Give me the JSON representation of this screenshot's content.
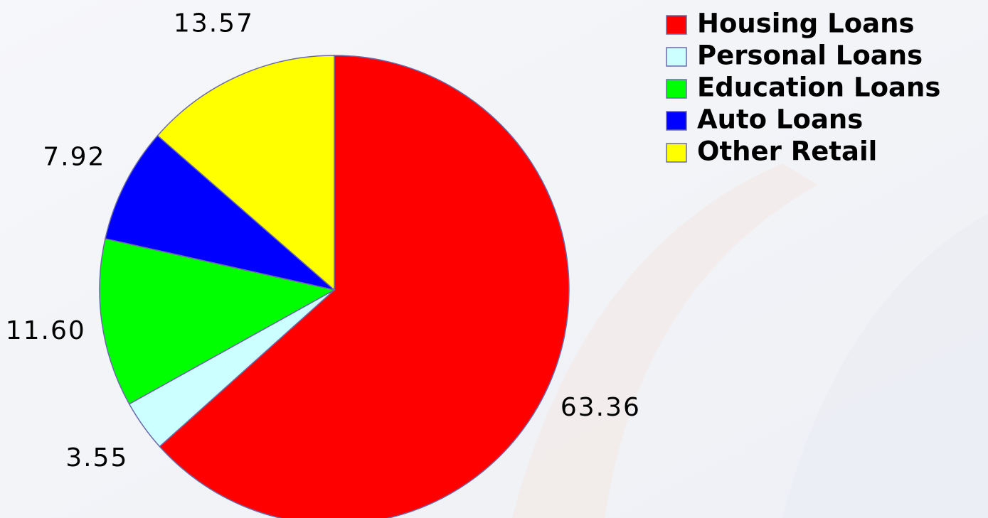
{
  "chart_data": {
    "type": "pie",
    "categories": [
      "Housing Loans",
      "Personal Loans",
      "Education Loans",
      "Auto Loans",
      "Other Retail"
    ],
    "values": [
      63.36,
      3.55,
      11.6,
      7.92,
      13.57
    ],
    "value_labels": [
      "63.36",
      "3.55",
      "11.60",
      "7.92",
      "13.57"
    ],
    "colors": [
      "#ff0000",
      "#ccffff",
      "#00ff00",
      "#0000ff",
      "#ffff00"
    ],
    "legend": "right"
  }
}
